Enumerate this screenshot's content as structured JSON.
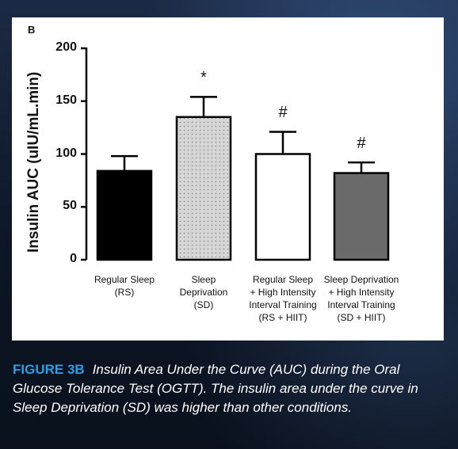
{
  "panel_letter": "B",
  "caption": {
    "label": "FIGURE 3B",
    "text": "Insulin Area Under the Curve (AUC) during the Oral Glucose Tolerance Test (OGTT). The insulin  area under the curve in Sleep Deprivation (SD) was higher than other conditions."
  },
  "chart_data": {
    "type": "bar",
    "ylabel": "Insulin AUC (uIU/mL.min)",
    "ylim": [
      0,
      200
    ],
    "yticks": [
      "0",
      "50",
      "100",
      "150",
      "200"
    ],
    "categories": [
      [
        "Regular Sleep",
        "(RS)"
      ],
      [
        "Sleep",
        "Deprivation",
        "(SD)"
      ],
      [
        "Regular Sleep",
        "+ High Intensity",
        "Interval Training",
        "(RS + HIIT)"
      ],
      [
        "Sleep Deprivation",
        "+ High Intensity",
        "Interval Training",
        "(SD + HIIT)"
      ]
    ],
    "values": [
      84,
      135,
      100,
      82
    ],
    "errors": [
      14,
      19,
      21,
      10
    ],
    "significance": [
      "",
      "*",
      "#",
      "#"
    ],
    "fills": [
      "#000000",
      "dotted",
      "#ffffff",
      "#6a6a6a"
    ]
  }
}
